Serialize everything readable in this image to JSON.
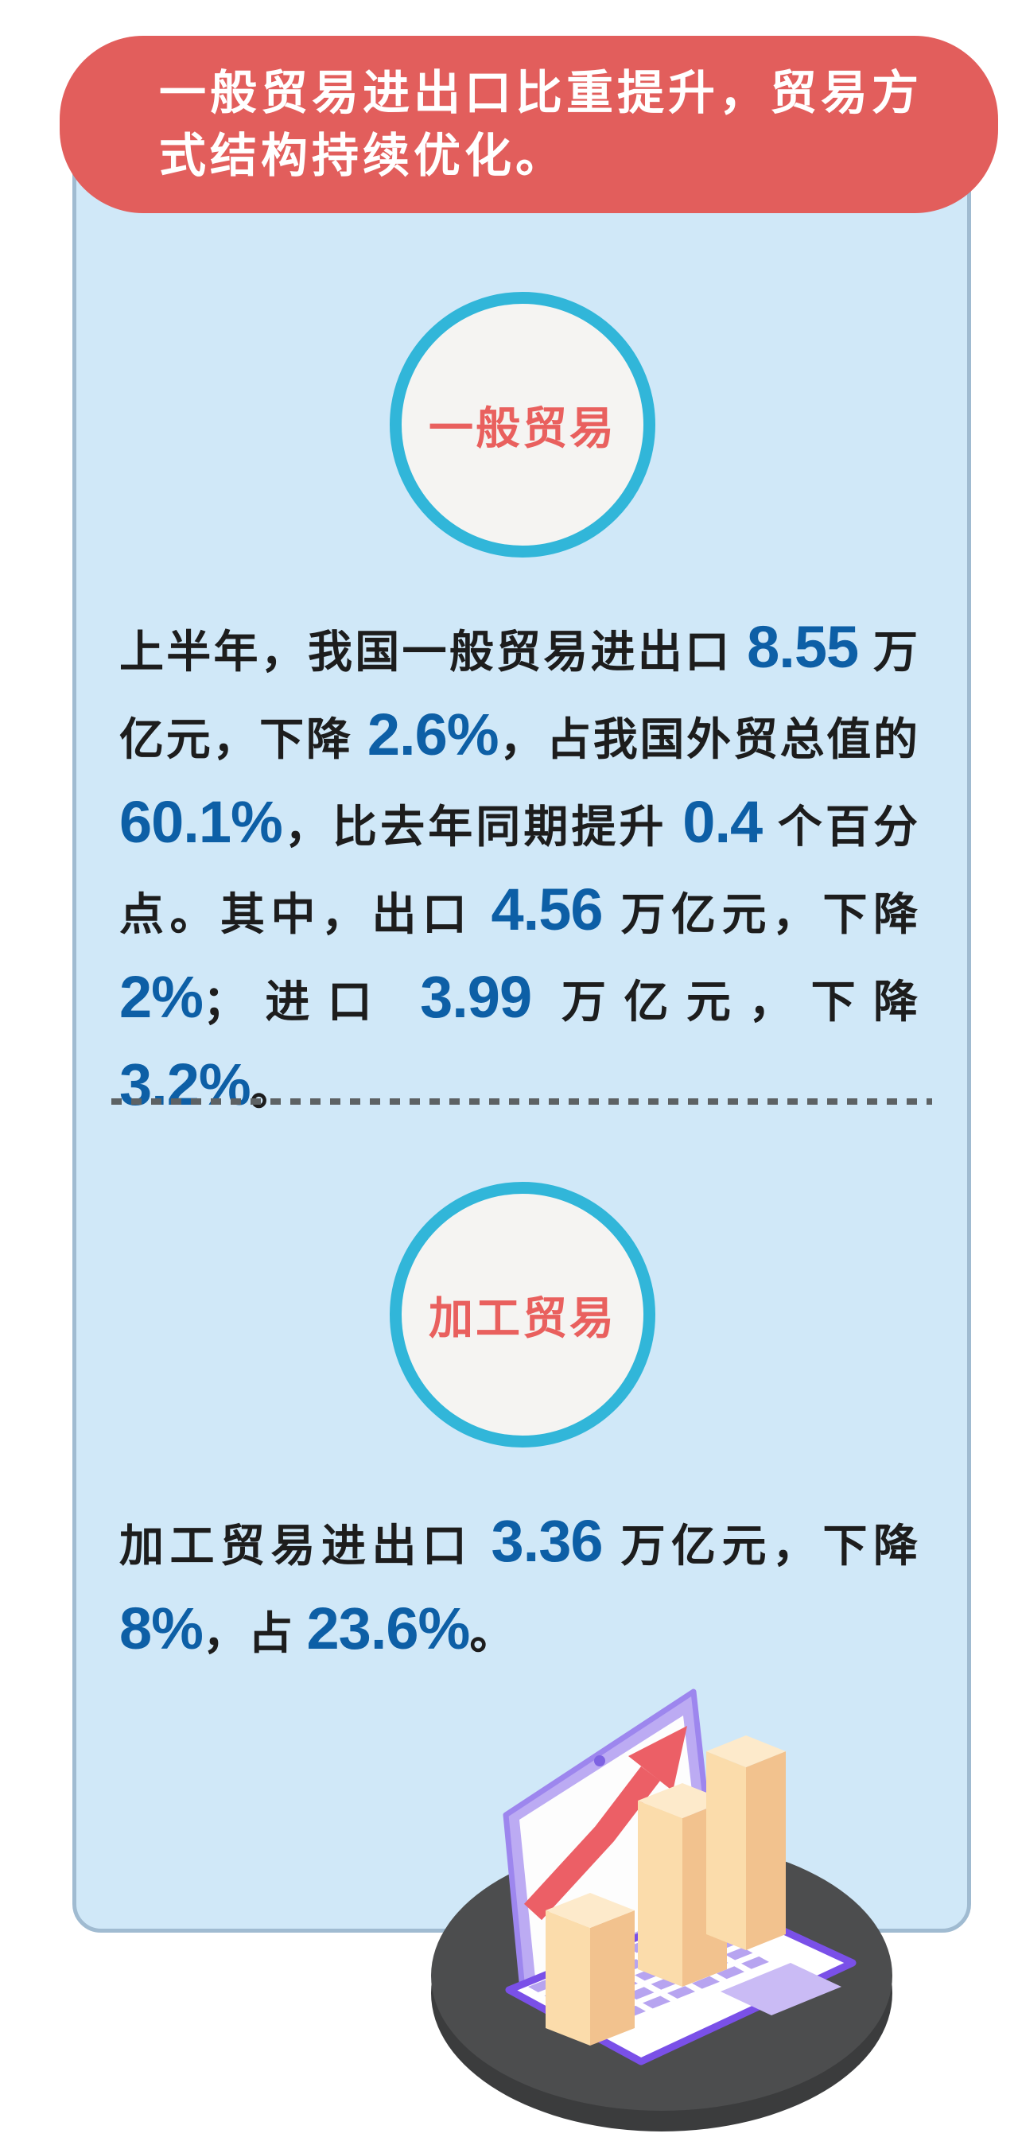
{
  "banner": {
    "title": "一般贸易进出口比重提升，贸易方式结构持续优化。",
    "bg_color": "#e25e5c",
    "text_color": "#ffffff"
  },
  "card": {
    "bg_color": "#d0e8f8",
    "border_color": "#a0bbd1"
  },
  "sections": [
    {
      "badge": "一般贸易",
      "badge_text_color": "#e9605e",
      "badge_ring_color": "#31b6d9",
      "paragraph": [
        {
          "text": "上半年，我国一般贸易进出口 "
        },
        {
          "text": "8.55",
          "highlight": true
        },
        {
          "text": " 万亿元，下降 "
        },
        {
          "text": "2.6%",
          "highlight": true
        },
        {
          "text": "，占我国外贸总值的 "
        },
        {
          "text": "60.1%",
          "highlight": true
        },
        {
          "text": "，比去年同期提升 "
        },
        {
          "text": "0.4",
          "highlight": true
        },
        {
          "text": " 个百分点。其中，出口 "
        },
        {
          "text": "4.56",
          "highlight": true
        },
        {
          "text": " 万亿元，下降 "
        },
        {
          "text": "2%",
          "highlight": true
        },
        {
          "text": "；进口 "
        },
        {
          "text": "3.99",
          "highlight": true
        },
        {
          "text": " 万亿元，下降 "
        },
        {
          "text": "3.2%",
          "highlight": true
        },
        {
          "text": "。"
        }
      ]
    },
    {
      "badge": "加工贸易",
      "badge_text_color": "#e9605e",
      "badge_ring_color": "#31b6d9",
      "paragraph": [
        {
          "text": "加工贸易进出口 "
        },
        {
          "text": "3.36",
          "highlight": true
        },
        {
          "text": " 万亿元，下降 "
        },
        {
          "text": "8%",
          "highlight": true
        },
        {
          "text": "，占 "
        },
        {
          "text": "23.6%",
          "highlight": true
        },
        {
          "text": "。"
        }
      ]
    }
  ],
  "highlight_color": "#0d5fa6",
  "body_text_color": "#1d1d1d",
  "divider_color": "#5d6264",
  "illustration": {
    "name": "laptop-with-rising-arrow-and-bar-chart",
    "disc_color": "#4c4d4e",
    "disc_rim_color": "#3b3c3d",
    "laptop_frame_color": "#bcabf3",
    "laptop_outline_color": "#7a50e8",
    "screen_color": "#fdfdfd",
    "arrow_color": "#ec5f66",
    "key_color": "#b7a4f0",
    "trackpad_color": "#cabbf5",
    "bar_front_color": "#fbdcab",
    "bar_side_color": "#f2c28e",
    "bar_top_color": "#fdeacb"
  }
}
